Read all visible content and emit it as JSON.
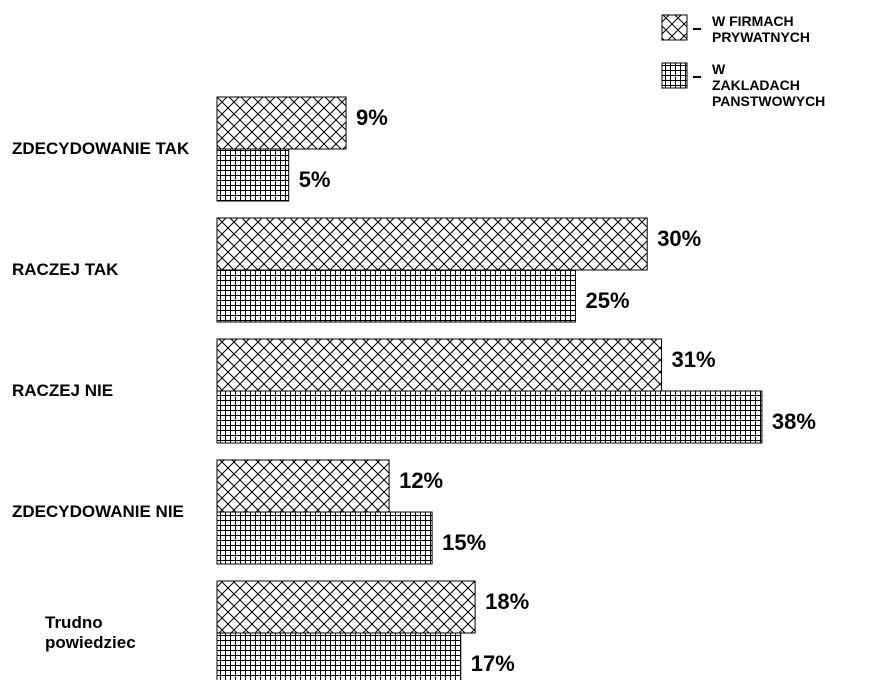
{
  "chart_data": {
    "type": "bar",
    "orientation": "horizontal",
    "categories": [
      "ZDECYDOWANIE TAK",
      "RACZEJ TAK",
      "RACZEJ NIE",
      "ZDECYDOWANIE NIE",
      "Trudno powiedziec"
    ],
    "series": [
      {
        "name": "W FIRMACH PRYWATNYCH",
        "color": "#000000",
        "pattern": "crosshatch",
        "values": [
          9,
          30,
          31,
          12,
          18
        ],
        "value_labels": [
          "9%",
          "30%",
          "31%",
          "12%",
          "18%"
        ]
      },
      {
        "name": "W ZAKLADACH PANSTWOWYCH",
        "color": "#000000",
        "pattern": "grid",
        "values": [
          5,
          25,
          38,
          15,
          17
        ],
        "value_labels": [
          "5%",
          "25%",
          "38%",
          "15%",
          "17%"
        ]
      }
    ],
    "legend": "top-right"
  }
}
